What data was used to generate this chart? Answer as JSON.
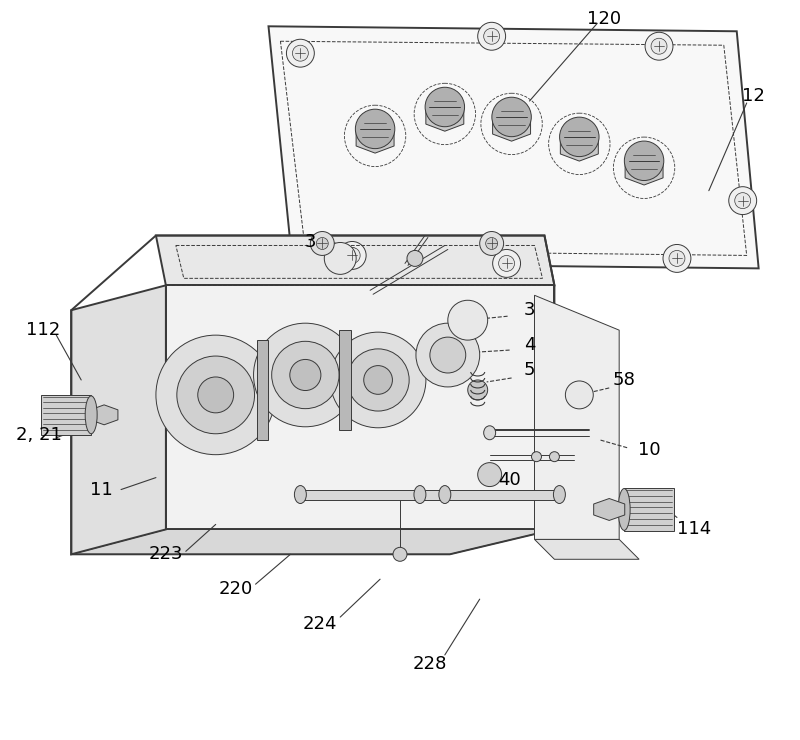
{
  "background_color": "#ffffff",
  "line_color": "#3a3a3a",
  "fig_width": 8.0,
  "fig_height": 7.4,
  "dpi": 100,
  "label_fontsize": 13,
  "label_color": "#000000",
  "annotation_fontsize": 13
}
